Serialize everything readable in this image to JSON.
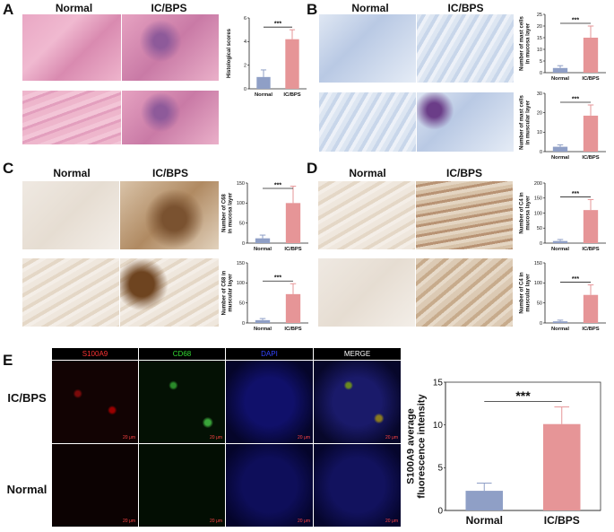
{
  "panels": {
    "A": {
      "letter": "A",
      "col1": "Normal",
      "col2": "IC/BPS"
    },
    "B": {
      "letter": "B",
      "col1": "Normal",
      "col2": "IC/BPS"
    },
    "C": {
      "letter": "C",
      "col1": "Normal",
      "col2": "IC/BPS"
    },
    "D": {
      "letter": "D",
      "col1": "Normal",
      "col2": "IC/BPS"
    },
    "E": {
      "letter": "E",
      "row1": "IC/BPS",
      "row2": "Normal",
      "channels": [
        "S100A9",
        "CD68",
        "DAPI",
        "MERGE"
      ],
      "scalebar": "20 μm"
    }
  },
  "colors": {
    "normal": "#8f9fc6",
    "icbps": "#e69597",
    "s100a9": "#ff3333",
    "cd68": "#33dd33",
    "dapi": "#3344ff",
    "merge": "#ffffff"
  },
  "chart_data": [
    {
      "id": "A",
      "type": "bar",
      "categories": [
        "Normal",
        "IC/BPS"
      ],
      "values": [
        1.0,
        4.2
      ],
      "errors": [
        0.6,
        0.8
      ],
      "ylabel": "Histological scores",
      "ylim": [
        0,
        6
      ],
      "yticks": [
        0,
        2,
        4,
        6
      ],
      "significance": "***"
    },
    {
      "id": "B1",
      "type": "bar",
      "categories": [
        "Normal",
        "IC/BPS"
      ],
      "values": [
        2.0,
        15.0
      ],
      "errors": [
        1.0,
        5.0
      ],
      "ylabel": "Number of mast cells in mucosa layer",
      "ylim": [
        0,
        25
      ],
      "yticks": [
        0,
        5,
        10,
        15,
        20,
        25
      ],
      "significance": "***"
    },
    {
      "id": "B2",
      "type": "bar",
      "categories": [
        "Normal",
        "IC/BPS"
      ],
      "values": [
        2.5,
        18.5
      ],
      "errors": [
        1.0,
        5.5
      ],
      "ylabel": "Number of mast cells in muscular layer",
      "ylim": [
        0,
        30
      ],
      "yticks": [
        0,
        10,
        20,
        30
      ],
      "significance": "***"
    },
    {
      "id": "C1",
      "type": "bar",
      "categories": [
        "Normal",
        "IC/BPS"
      ],
      "values": [
        12,
        100
      ],
      "errors": [
        8,
        42
      ],
      "ylabel": "Number of C68 in mucosa layer",
      "ylim": [
        0,
        150
      ],
      "yticks": [
        0,
        50,
        100,
        150
      ],
      "significance": "***"
    },
    {
      "id": "C2",
      "type": "bar",
      "categories": [
        "Normal",
        "IC/BPS"
      ],
      "values": [
        7,
        72
      ],
      "errors": [
        4,
        26
      ],
      "ylabel": "Number of C68 in muscular layer",
      "ylim": [
        0,
        150
      ],
      "yticks": [
        0,
        50,
        100,
        150
      ],
      "significance": "***"
    },
    {
      "id": "D1",
      "type": "bar",
      "categories": [
        "Normal",
        "IC/BPS"
      ],
      "values": [
        7,
        110
      ],
      "errors": [
        5,
        35
      ],
      "ylabel": "Number of C4 in mucosa layer",
      "ylim": [
        0,
        200
      ],
      "yticks": [
        0,
        50,
        100,
        150,
        200
      ],
      "significance": "***"
    },
    {
      "id": "D2",
      "type": "bar",
      "categories": [
        "Normal",
        "IC/BPS"
      ],
      "values": [
        4,
        70
      ],
      "errors": [
        3,
        25
      ],
      "ylabel": "Number of C4 in muscular layer",
      "ylim": [
        0,
        150
      ],
      "yticks": [
        0,
        50,
        100,
        150
      ],
      "significance": "***"
    },
    {
      "id": "E",
      "type": "bar",
      "categories": [
        "Normal",
        "IC/BPS"
      ],
      "values": [
        2.3,
        10.1
      ],
      "errors": [
        0.9,
        2.0
      ],
      "ylabel": "S100A9 average fluorescence intensity",
      "ylim": [
        0,
        15
      ],
      "yticks": [
        0,
        5,
        10,
        15
      ],
      "significance": "***"
    }
  ]
}
